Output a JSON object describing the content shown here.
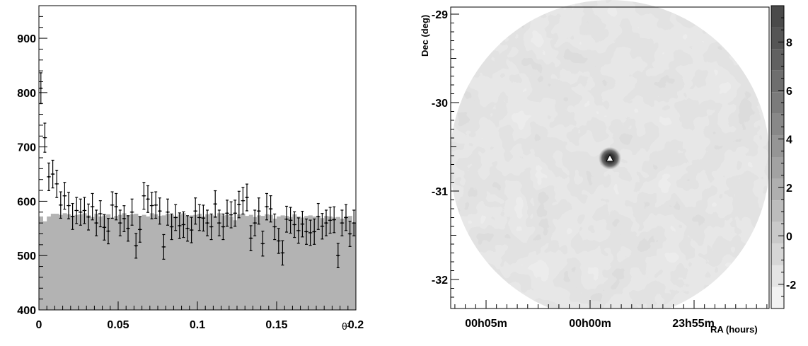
{
  "chart_data": [
    {
      "type": "histogram-with-errorbars",
      "xlabel": "θ²",
      "ylabel": "",
      "xlim": [
        0,
        0.2
      ],
      "ylim": [
        400,
        960
      ],
      "x_tick_labels": [
        "0",
        "0.05",
        "0.1",
        "0.15",
        "0.2"
      ],
      "y_tick_labels": [
        "400",
        "500",
        "600",
        "700",
        "800",
        "900"
      ],
      "bin_width": 0.0025,
      "on_counts": [
        808,
        717,
        645,
        650,
        632,
        593,
        610,
        592,
        572,
        583,
        580,
        583,
        571,
        590,
        560,
        577,
        552,
        545,
        593,
        590,
        560,
        568,
        550,
        580,
        518,
        548,
        610,
        604,
        592,
        593,
        582,
        516,
        580,
        553,
        570,
        555,
        557,
        550,
        547,
        582,
        570,
        569,
        560,
        553,
        595,
        560,
        553,
        578,
        575,
        578,
        594,
        601,
        607,
        532,
        560,
        582,
        522,
        590,
        586,
        553,
        527,
        505,
        567,
        565,
        557,
        546,
        558,
        544,
        542,
        544,
        572,
        554,
        560,
        565,
        566,
        500,
        560,
        570,
        540,
        560
      ],
      "off_level": [
        572,
        563,
        572,
        577,
        577,
        575,
        578,
        576,
        573,
        575,
        576,
        578,
        574,
        571,
        577,
        572,
        574,
        576,
        570,
        573,
        575,
        578,
        574,
        576,
        577,
        573,
        575,
        572,
        578,
        576,
        573,
        574,
        577,
        575,
        572,
        576,
        578,
        573,
        574,
        575,
        577,
        572,
        576,
        575,
        573,
        578,
        574,
        575,
        572,
        565,
        576,
        577,
        573,
        575,
        571,
        574,
        573,
        576,
        575,
        568,
        572,
        574,
        573,
        571,
        576,
        572,
        570,
        573,
        574,
        572,
        571,
        569,
        573,
        572,
        570,
        571,
        568,
        572,
        573,
        560
      ]
    },
    {
      "type": "heatmap",
      "xlabel": "RA (hours)",
      "ylabel": "Dec (deg)",
      "x_tick_labels": [
        "00h05m",
        "00h00m",
        "23h55m"
      ],
      "y_tick_labels": [
        "-29",
        "-30",
        "-31",
        "-32"
      ],
      "colorbar_tick_labels": [
        "-2",
        "0",
        "2",
        "4",
        "6",
        "8"
      ],
      "colorbar_range": [
        -3,
        9.5
      ],
      "hotspot": {
        "ra_offset_deg": -0.55,
        "dec": -30.63
      },
      "marker": "triangle"
    }
  ]
}
